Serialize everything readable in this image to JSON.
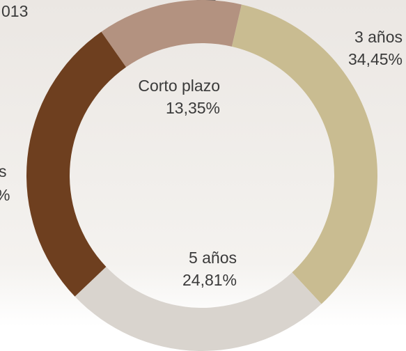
{
  "chart_data": {
    "type": "donut",
    "categories": [
      "Corto plazo",
      "3 años",
      "5 años",
      null
    ],
    "values": [
      13.35,
      34.45,
      24.81,
      27.39
    ],
    "value_labels": [
      "13,35%",
      "34,45%",
      "24,81%",
      null
    ],
    "colors": [
      "#b39280",
      "#c9bc91",
      "#d9d4ce",
      "#6e3f1f"
    ],
    "annotations": [
      "013",
      "s",
      "%"
    ]
  }
}
